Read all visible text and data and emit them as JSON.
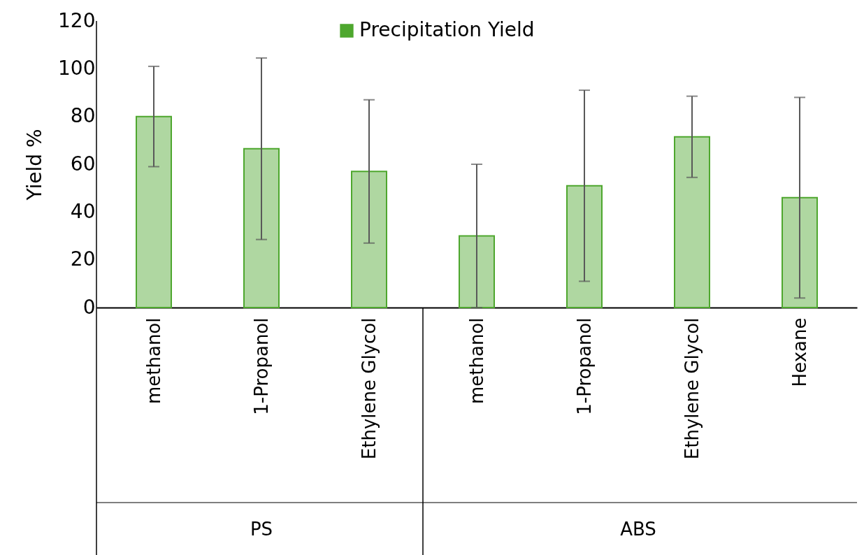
{
  "chart_data": {
    "type": "bar",
    "ylabel": "Yield %",
    "categories": [
      "methanol",
      "1-Propanol",
      "Ethylene Glycol",
      "methanol",
      "1-Propanol",
      "Ethylene Glycol",
      "Hexane"
    ],
    "series": [
      {
        "name": "Precipitation Yield",
        "color": "#4ea72e",
        "values": [
          80,
          66.5,
          57,
          30,
          51,
          71.5,
          46
        ],
        "errors": [
          21,
          38,
          30,
          30,
          40,
          17,
          42
        ]
      }
    ],
    "ylim": [
      0,
      120
    ],
    "yticks": [
      0,
      20,
      40,
      60,
      80,
      100,
      120
    ],
    "annotations": [
      "PS",
      "ABS"
    ],
    "legend": "top",
    "grid": false
  }
}
